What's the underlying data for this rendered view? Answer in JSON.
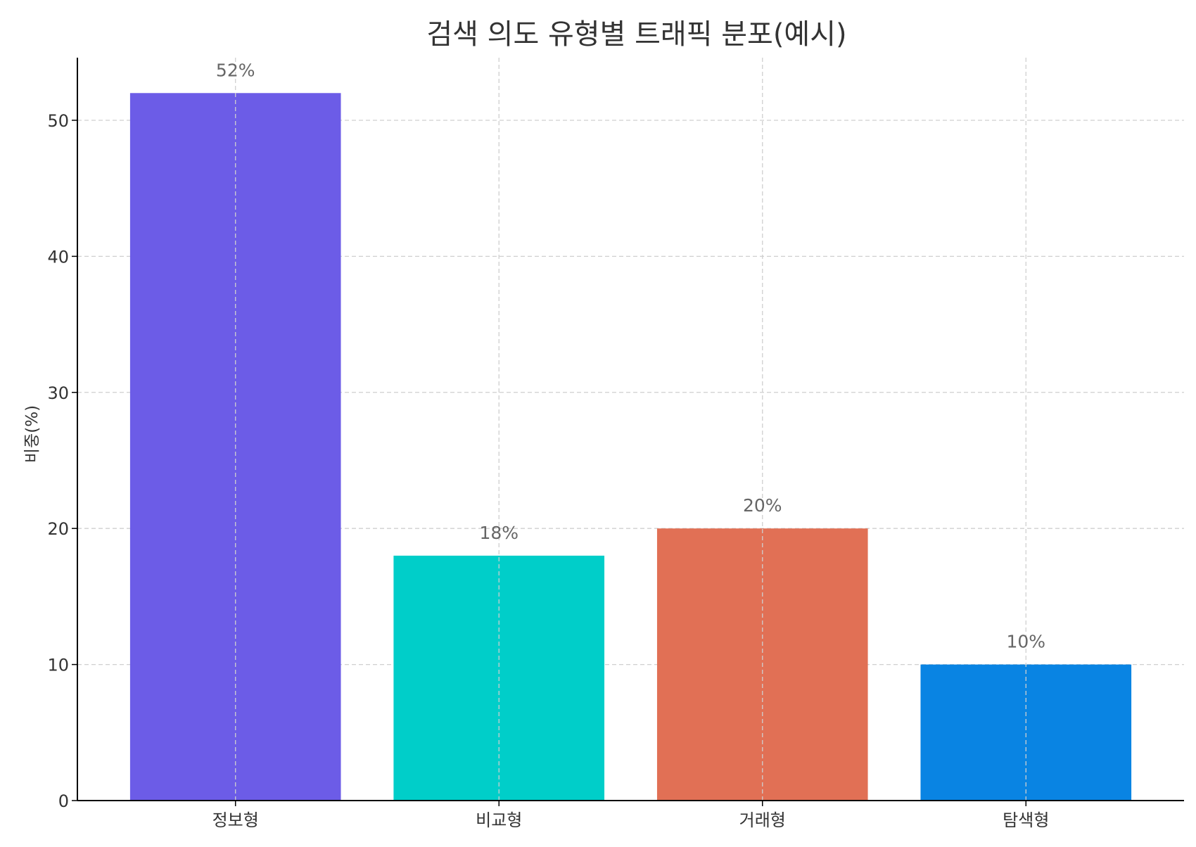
{
  "chart_data": {
    "type": "bar",
    "title": "검색 의도 유형별 트래픽 분포(예시)",
    "xlabel": "",
    "ylabel": "비중(%)",
    "categories": [
      "정보형",
      "비교형",
      "거래형",
      "탐색형"
    ],
    "values": [
      52,
      18,
      20,
      10
    ],
    "data_labels": [
      "52%",
      "18%",
      "20%",
      "10%"
    ],
    "colors": [
      "#6c5ce7",
      "#00cec9",
      "#e17055",
      "#0984e3"
    ],
    "ylim": [
      0,
      54.6
    ],
    "yticks": [
      0,
      10,
      20,
      30,
      40,
      50
    ],
    "grid": true,
    "legend": "none"
  }
}
